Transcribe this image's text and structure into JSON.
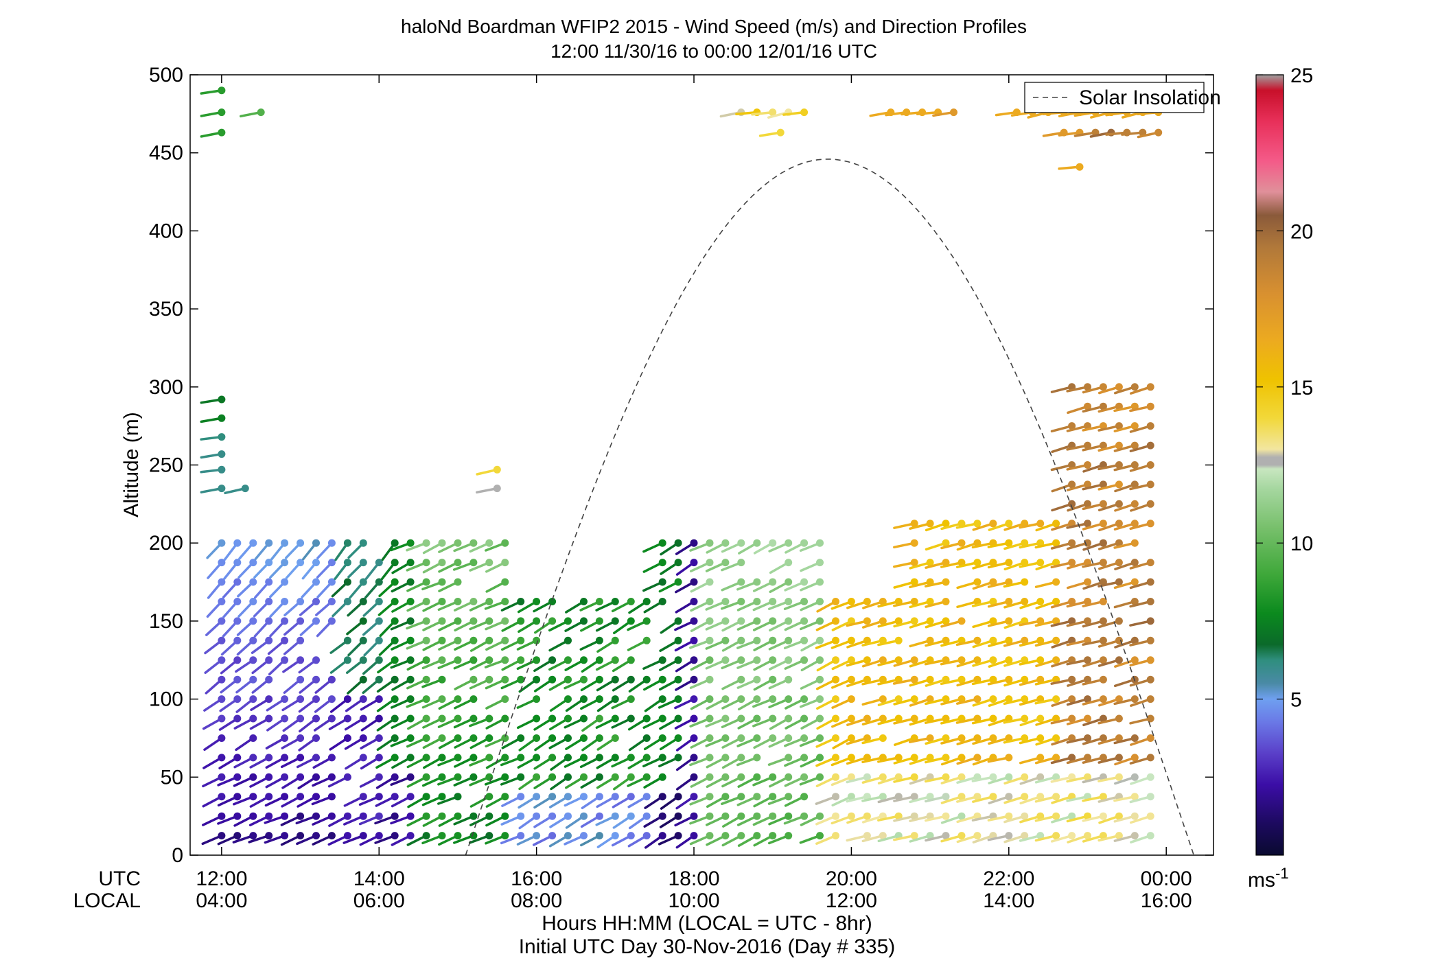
{
  "chart_data": {
    "type": "wind-barb-profile",
    "title": "haloNd Boardman WFIP2 2015 - Wind Speed (m/s) and Direction Profiles",
    "subtitle": "12:00 11/30/16 to 00:00 12/01/16  UTC",
    "ylabel": "Altitude (m)",
    "xlabel": "Hours HH:MM  (LOCAL = UTC - 8hr)",
    "xlabel2": "Initial UTC Day 30-Nov-2016 (Day # 335)",
    "row_labels": {
      "utc": "UTC",
      "local": "LOCAL"
    },
    "ylim": [
      0,
      500
    ],
    "xlim_hours": [
      11.6,
      24.6
    ],
    "yticks": [
      "0",
      "50",
      "100",
      "150",
      "200",
      "250",
      "300",
      "350",
      "400",
      "450",
      "500"
    ],
    "xticks_utc": [
      "12:00",
      "14:00",
      "16:00",
      "18:00",
      "20:00",
      "22:00",
      "00:00"
    ],
    "xticks_local": [
      "04:00",
      "06:00",
      "08:00",
      "10:00",
      "12:00",
      "14:00",
      "16:00"
    ],
    "legend": {
      "entries": [
        "Solar Insolation"
      ],
      "placement": "top-right"
    },
    "colorbar": {
      "range": [
        0,
        25
      ],
      "ticks": [
        "5",
        "10",
        "15",
        "20",
        "25"
      ],
      "unit": "ms",
      "unit_exp": "-1"
    },
    "solar_insolation": {
      "start_hour": 15.1,
      "peak_hour": 19.7,
      "end_hour": 24.35,
      "peak_altitude": 446
    },
    "wind_speed_regions_ms": [
      {
        "hours": "12:00-14:00",
        "altitude": "0-200 m",
        "speed": "1-6"
      },
      {
        "hours": "13:40-15:40",
        "altitude": "0-200 m",
        "speed": "6-11"
      },
      {
        "hours": "15:40-18:00",
        "altitude": "0-180 m",
        "speed": "7-11"
      },
      {
        "hours": "17:50-18:00",
        "altitude": "0-200 m",
        "speed": "1-3"
      },
      {
        "hours": "18:00-20:00",
        "altitude": "0-200 m",
        "speed": "9-12"
      },
      {
        "hours": "19:40-23:50",
        "altitude": "0-60 m",
        "speed": "11-14"
      },
      {
        "hours": "20:00-22:50",
        "altitude": "60-220 m",
        "speed": "15-17"
      },
      {
        "hours": "22:40-23:50",
        "altitude": "60-300 m",
        "speed": "17-20"
      },
      {
        "hours": "18:30-23:50",
        "altitude": "440-480 m",
        "speed": "13-20"
      }
    ]
  }
}
